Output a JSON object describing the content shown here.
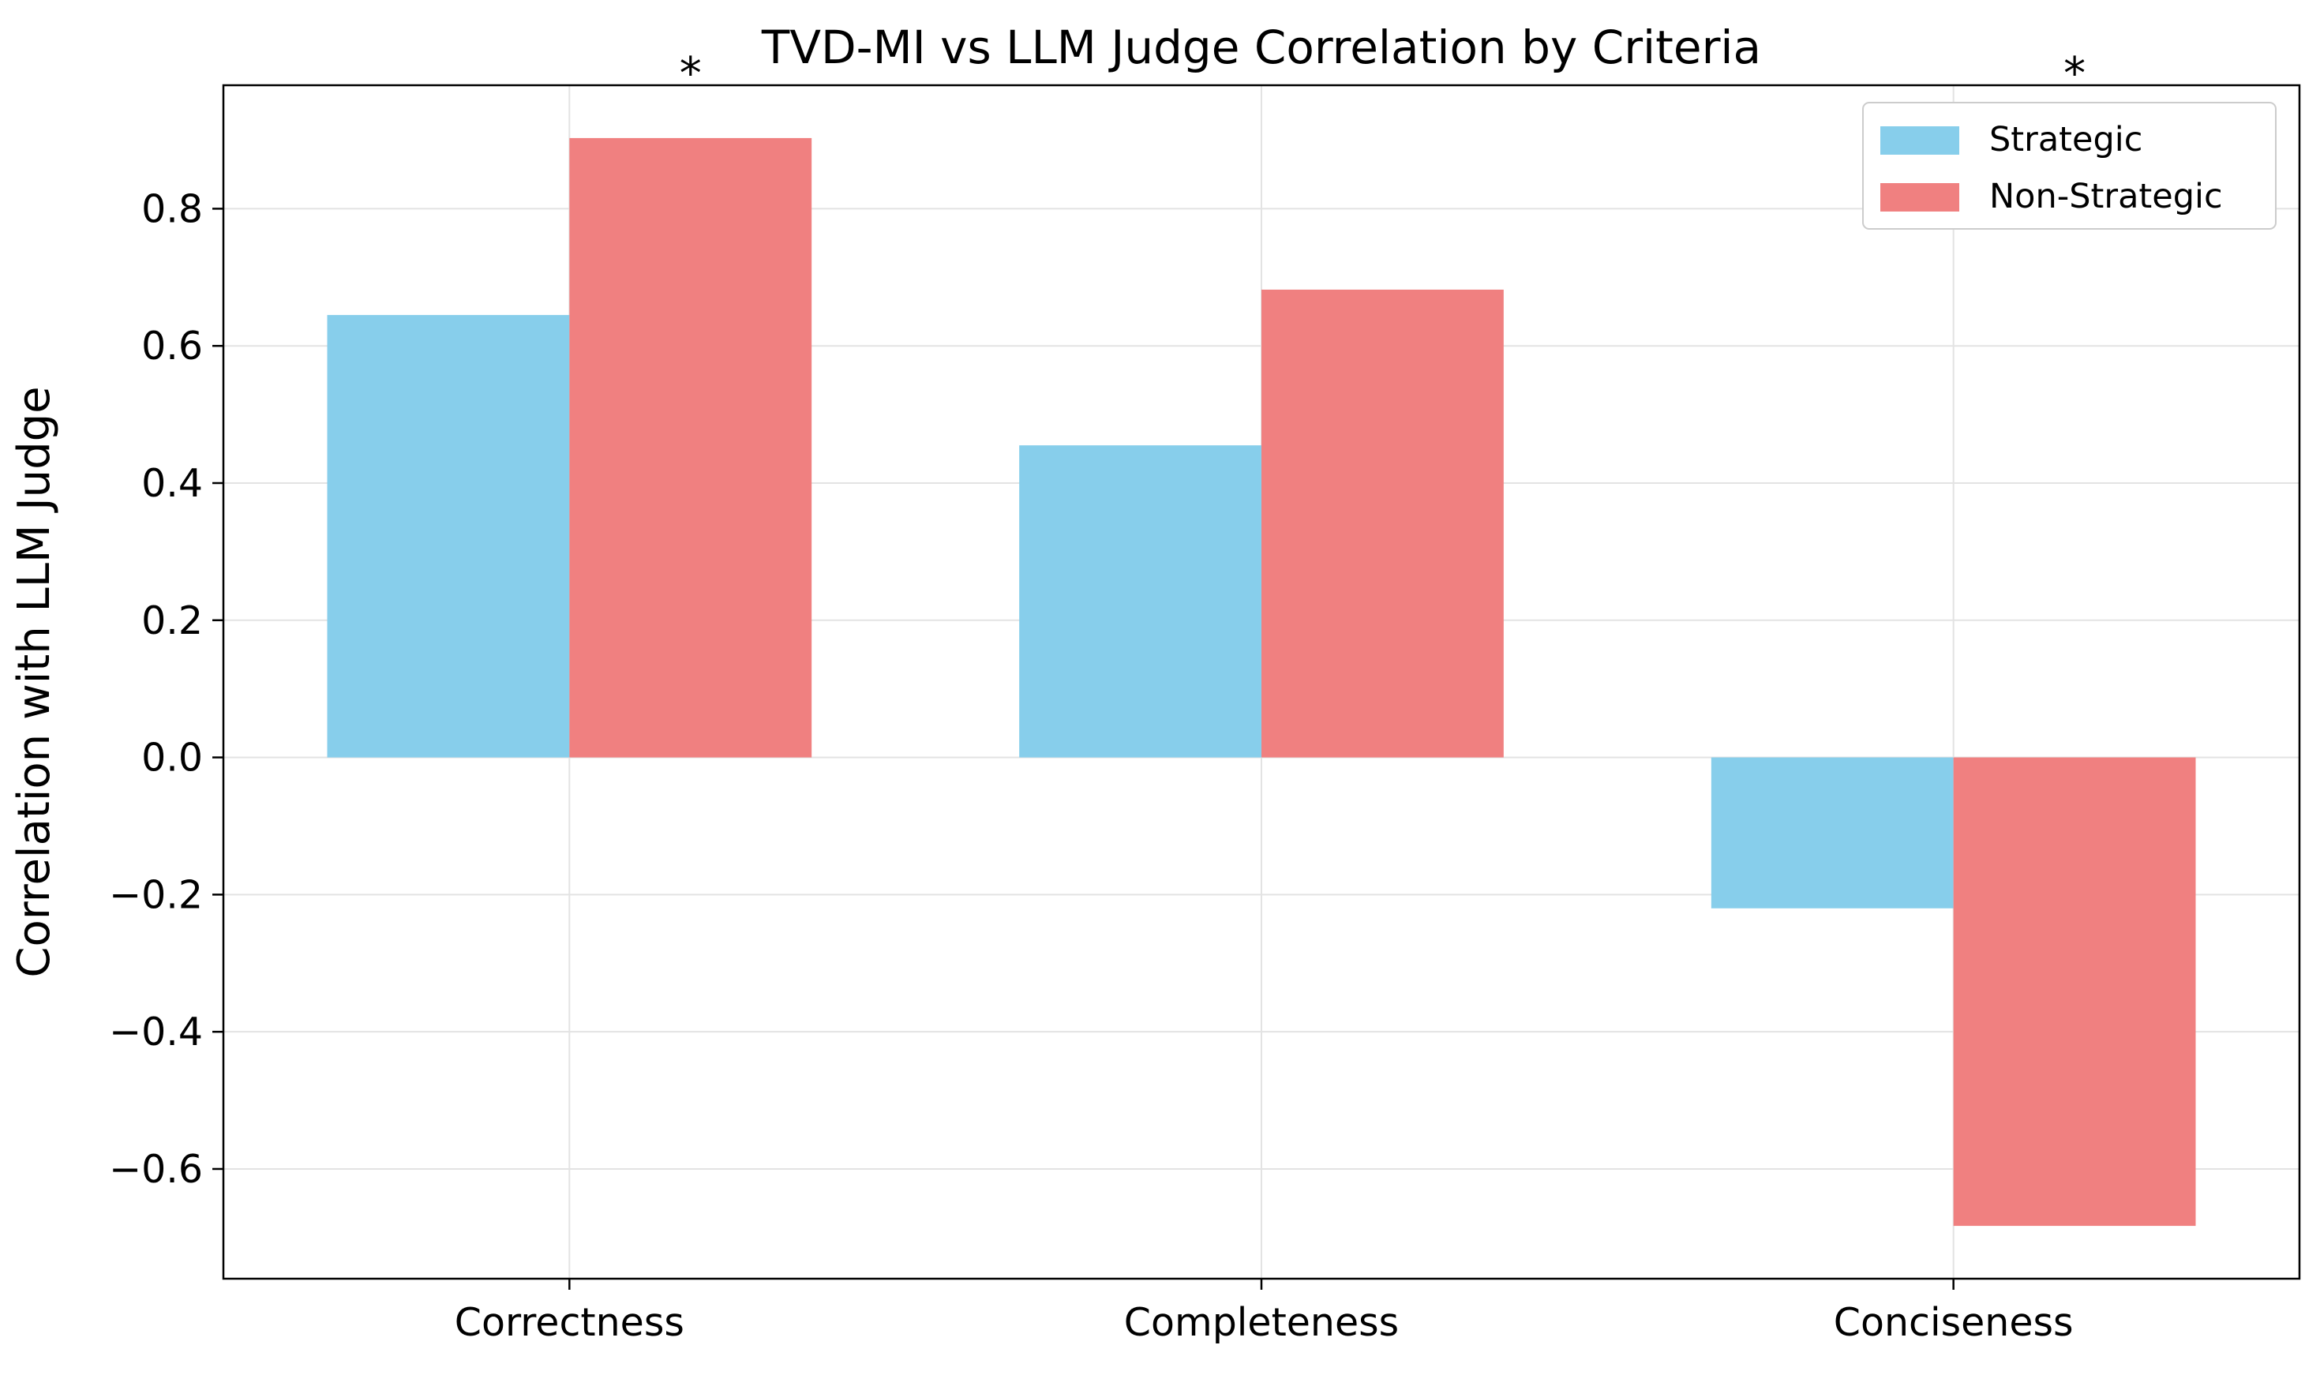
{
  "chart_data": {
    "type": "bar",
    "title": "TVD-MI vs LLM Judge Correlation by Criteria",
    "xlabel": "",
    "ylabel": "Correlation with LLM Judge",
    "categories": [
      "Correctness",
      "Completeness",
      "Conciseness"
    ],
    "series": [
      {
        "name": "Strategic",
        "values": [
          0.645,
          0.455,
          -0.22
        ],
        "color": "#87CEEB"
      },
      {
        "name": "Non-Strategic",
        "values": [
          0.903,
          0.682,
          -0.683
        ],
        "color": "#F08080"
      }
    ],
    "ylim": [
      -0.76,
      0.98
    ],
    "yticks": [
      -0.6,
      -0.4,
      -0.2,
      0.0,
      0.2,
      0.4,
      0.6,
      0.8
    ],
    "ytick_labels": [
      "−0.6",
      "−0.4",
      "−0.2",
      "0.0",
      "0.2",
      "0.4",
      "0.6",
      "0.8"
    ],
    "grid": true,
    "legend_position": "top-right",
    "annotations": [
      {
        "text": "*",
        "category_index": 0
      },
      {
        "text": "*",
        "category_index": 2
      }
    ]
  }
}
